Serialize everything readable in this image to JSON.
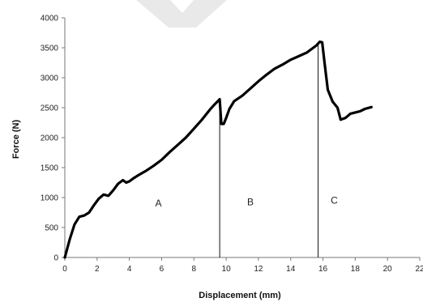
{
  "chart_data": {
    "type": "line",
    "title": "",
    "xlabel": "Displacement (mm)",
    "ylabel": "Force (N)",
    "xlim": [
      0,
      22
    ],
    "ylim": [
      0,
      4000
    ],
    "x_ticks": [
      0,
      2,
      4,
      6,
      8,
      10,
      12,
      14,
      16,
      18,
      20,
      22
    ],
    "y_ticks": [
      0,
      500,
      1000,
      1500,
      2000,
      2500,
      3000,
      3500,
      4000
    ],
    "x_tick_labels": [
      "0",
      "2",
      "4",
      "6",
      "8",
      "10",
      "12",
      "14",
      "16",
      "18",
      "20",
      "22"
    ],
    "y_tick_labels": [
      "0",
      "500",
      "1000",
      "1500",
      "2000",
      "2500",
      "3000",
      "3500",
      "4000"
    ],
    "grid": false,
    "legend": "none",
    "line_color": "#000000",
    "series": [
      {
        "x": [
          0,
          0.3,
          0.6,
          0.9,
          1.2,
          1.5,
          1.8,
          2.1,
          2.4,
          2.7,
          3.0,
          3.3,
          3.6,
          3.8,
          4.0,
          4.3,
          4.6,
          5.0,
          5.5,
          6.0,
          6.5,
          7.0,
          7.5,
          8.0,
          8.5,
          9.0,
          9.3,
          9.6,
          9.7,
          9.85,
          10.0,
          10.2,
          10.5,
          11.0,
          11.5,
          12.0,
          12.5,
          13.0,
          13.5,
          14.0,
          14.5,
          15.0,
          15.3,
          15.6,
          15.8,
          15.95,
          16.1,
          16.3,
          16.6,
          16.9,
          17.1,
          17.4,
          17.7,
          18.0,
          18.3,
          18.6,
          19.0
        ],
        "y": [
          0,
          300,
          550,
          680,
          700,
          750,
          870,
          980,
          1050,
          1030,
          1120,
          1230,
          1290,
          1250,
          1270,
          1330,
          1380,
          1440,
          1530,
          1630,
          1760,
          1880,
          2000,
          2150,
          2300,
          2470,
          2560,
          2640,
          2230,
          2230,
          2330,
          2480,
          2610,
          2700,
          2820,
          2940,
          3050,
          3150,
          3220,
          3300,
          3360,
          3420,
          3480,
          3540,
          3600,
          3590,
          3250,
          2800,
          2600,
          2500,
          2300,
          2330,
          2400,
          2420,
          2440,
          2480,
          2510
        ]
      }
    ],
    "vlines_x": [
      9.6,
      15.7
    ],
    "annotations": [
      {
        "text": "A",
        "x": 5.8,
        "y": 850
      },
      {
        "text": "B",
        "x": 11.5,
        "y": 870
      },
      {
        "text": "C",
        "x": 16.7,
        "y": 900
      }
    ]
  }
}
